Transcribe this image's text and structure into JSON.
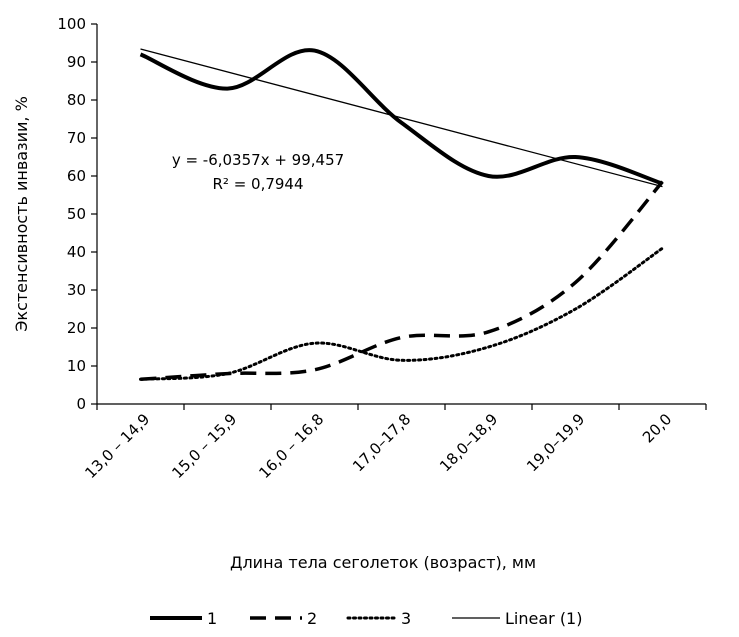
{
  "chart_data": {
    "type": "line",
    "title": "",
    "xlabel": "Длина тела сеголеток (возраст), мм",
    "ylabel": "Экстенсивность инвазии, %",
    "ylim": [
      0,
      100
    ],
    "yticks": [
      0,
      10,
      20,
      30,
      40,
      50,
      60,
      70,
      80,
      90,
      100
    ],
    "categories": [
      "13,0 – 14,9",
      "15,0 – 15,9",
      "16,0 – 16,8",
      "17,0–17,8",
      "18,0–18,9",
      "19,0–19,9",
      "20,0"
    ],
    "series": [
      {
        "name": "1",
        "style": "solid-thick",
        "color": "#000000",
        "values": [
          92,
          83,
          93,
          74,
          60,
          65,
          58
        ]
      },
      {
        "name": "2",
        "style": "dashed",
        "color": "#000000",
        "values": [
          6.5,
          8,
          9,
          17.5,
          19,
          32,
          58.5
        ]
      },
      {
        "name": "3",
        "style": "dotted",
        "color": "#000000",
        "values": [
          6.5,
          8,
          16,
          11.5,
          15,
          25,
          41
        ]
      },
      {
        "name": "Linear (1)",
        "style": "solid-thin",
        "color": "#000000",
        "trend": {
          "slope": -6.0357,
          "intercept": 99.457
        }
      }
    ],
    "annotation": {
      "equation": "y = -6,0357x + 99,457",
      "r2": "R² = 0,7944"
    },
    "grid": false,
    "legend": "bottom"
  }
}
